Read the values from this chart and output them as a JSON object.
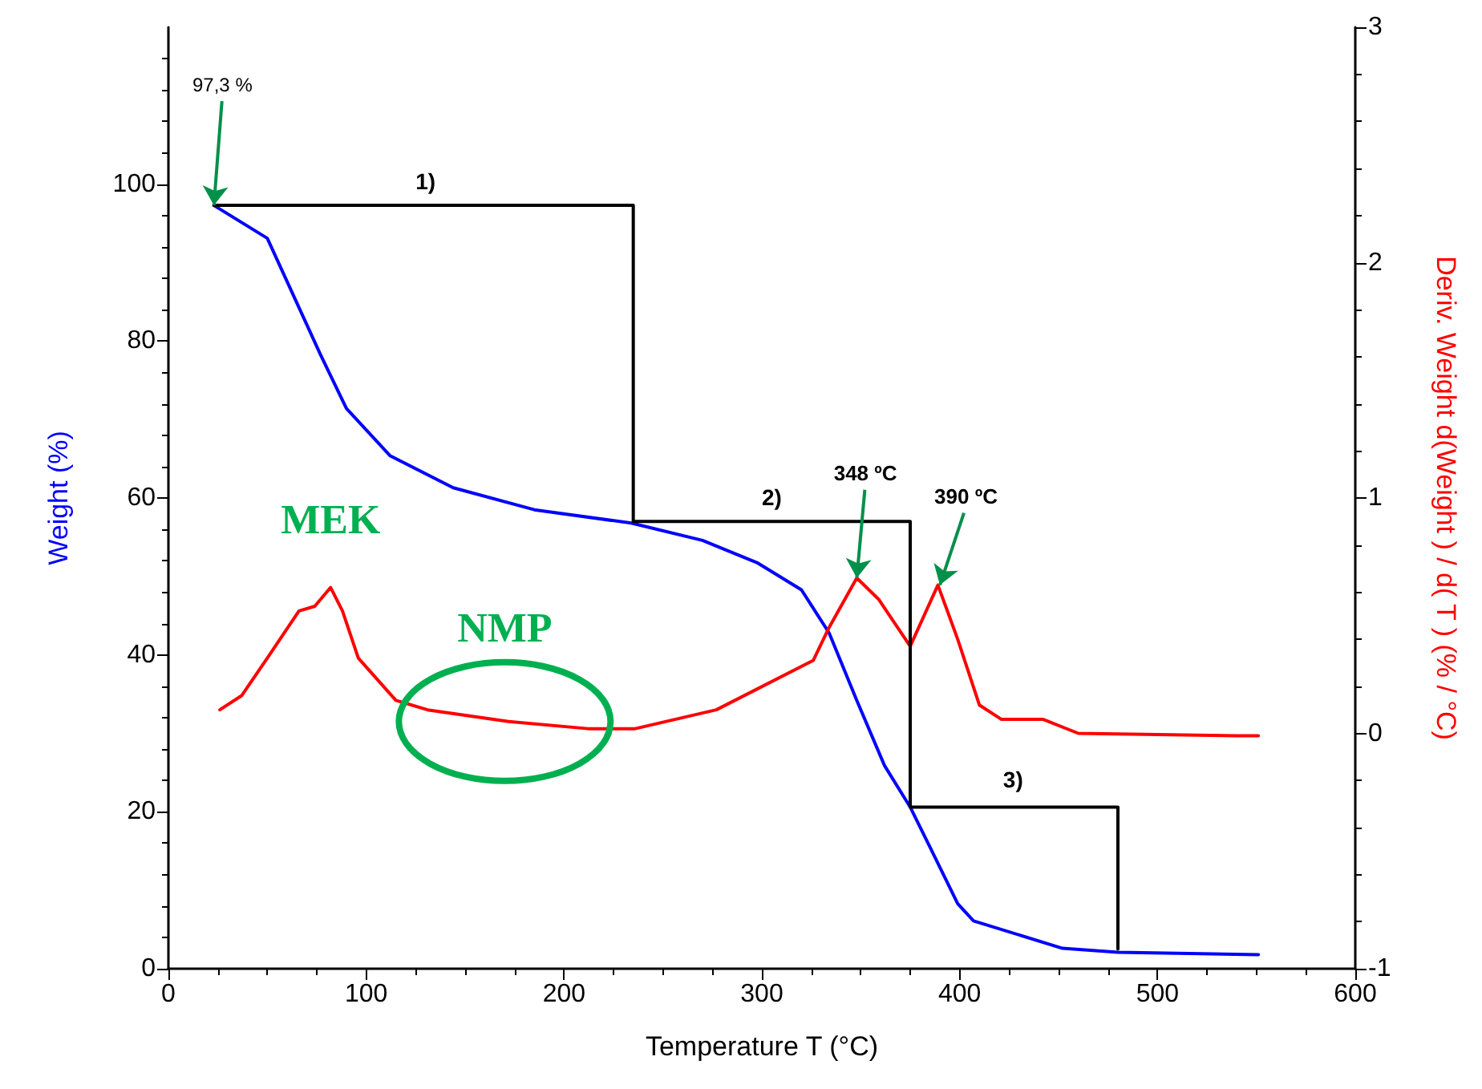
{
  "chart_data": {
    "type": "line",
    "xlabel": "Temperature T (°C)",
    "ylabel": "Weight (%)",
    "y2label": "Deriv. Weight d(Weight ) / d( T ) (% / °C)",
    "xlim": [
      0,
      600
    ],
    "xticks": [
      0,
      100,
      200,
      300,
      400,
      500,
      600
    ],
    "ylim": [
      0,
      120
    ],
    "yticks": [
      0,
      20,
      40,
      60,
      80,
      100
    ],
    "y2lim": [
      -1,
      3
    ],
    "y2ticks": [
      -1,
      0,
      1,
      2,
      3
    ],
    "marker": "none",
    "line_style": "solid",
    "series": [
      {
        "color": "#0000ff",
        "x": [
          23,
          50,
          77,
          90,
          112,
          144,
          185,
          234,
          270,
          298,
          320,
          334,
          348,
          362,
          375,
          384,
          399,
          407,
          452,
          480,
          551
        ],
        "values": [
          97.3,
          93.1,
          78.2,
          71.4,
          65.4,
          61.3,
          58.5,
          56.8,
          54.6,
          51.7,
          48.3,
          42.8,
          34.2,
          25.9,
          20.6,
          16.0,
          8.3,
          6.1,
          2.6,
          2.1,
          1.8
        ]
      },
      {
        "color": "#ff0000",
        "axis": "y2",
        "x": [
          26,
          37,
          50,
          66,
          74,
          82,
          88,
          96,
          115,
          131,
          172,
          212,
          236,
          277,
          326,
          334,
          348,
          359,
          375,
          389,
          399,
          410,
          421,
          442,
          460,
          540,
          551
        ],
        "values": [
          0.1,
          0.16,
          0.32,
          0.52,
          0.54,
          0.62,
          0.52,
          0.32,
          0.14,
          0.1,
          0.05,
          0.02,
          0.02,
          0.1,
          0.31,
          0.45,
          0.66,
          0.57,
          0.37,
          0.63,
          0.4,
          0.12,
          0.06,
          0.06,
          0.0,
          -0.01,
          -0.01
        ]
      },
      {
        "color": "#000000",
        "x": [
          23,
          235,
          235,
          375,
          375,
          480,
          480
        ],
        "values": [
          97.3,
          97.3,
          57,
          57,
          20.6,
          20.6,
          2.5
        ]
      }
    ],
    "annotations": [
      {
        "text": "97,3 %",
        "x": 23,
        "y": 97.3
      },
      {
        "text": "348 ºC",
        "x": 348,
        "y": 49.8
      },
      {
        "text": "390 ºC",
        "x": 390,
        "y": 48.9
      },
      {
        "text": "1)",
        "x": 130,
        "y": 97.3
      },
      {
        "text": "2)",
        "x": 305,
        "y": 57
      },
      {
        "text": "3)",
        "x": 427,
        "y": 20.6
      },
      {
        "text": "MEK",
        "x": 82,
        "y": 48.6
      },
      {
        "text": "NMP",
        "x": 170,
        "y": 31.5
      }
    ]
  }
}
